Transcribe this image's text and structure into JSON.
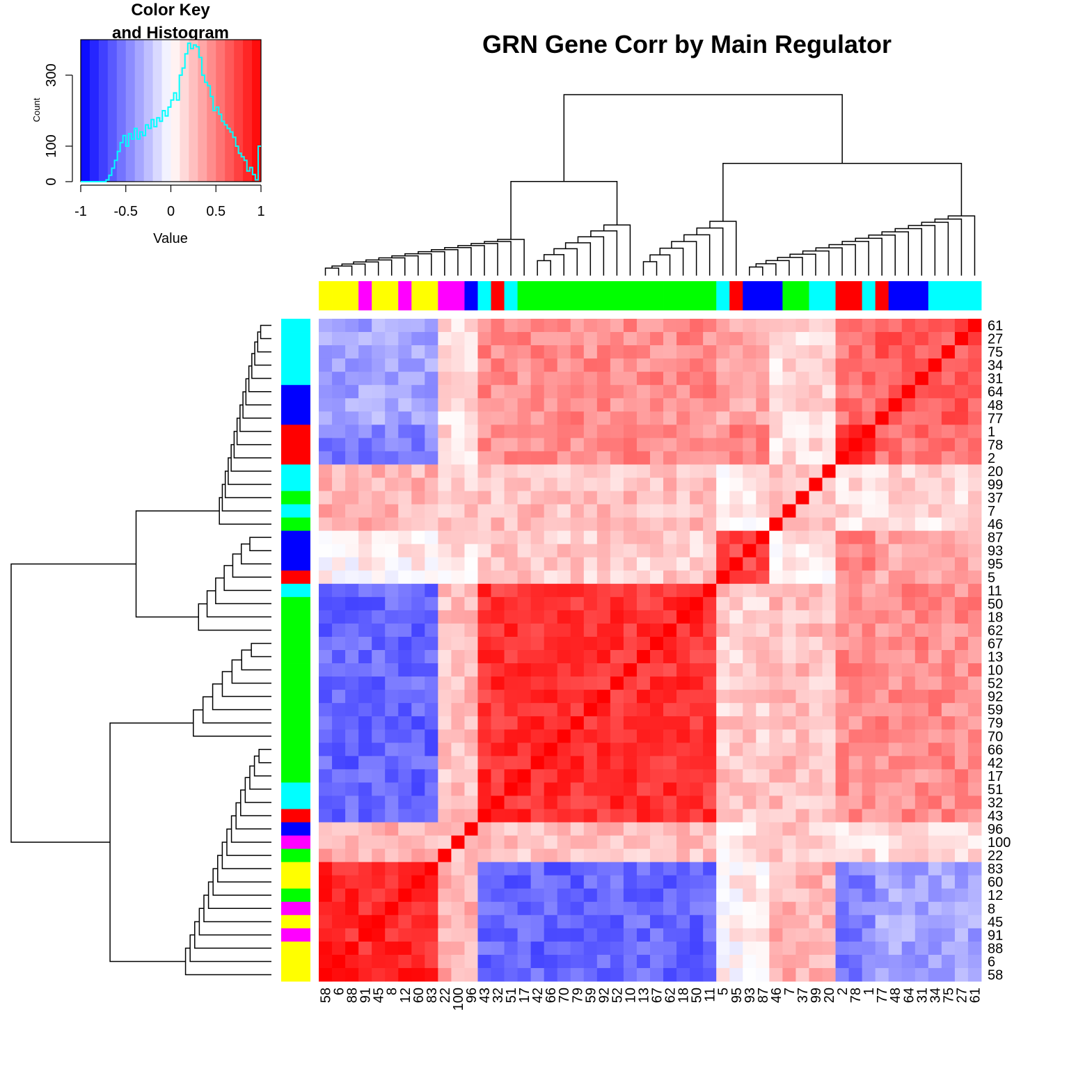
{
  "chart_data": {
    "type": "heatmap",
    "title": "GRN Gene Corr by Main Regulator",
    "color_key": {
      "title_line1": "Color Key",
      "title_line2": "and Histogram",
      "xlabel": "Value",
      "ylabel": "Count",
      "x_ticks": [
        "-1",
        "-0.5",
        "0",
        "0.5",
        "1"
      ],
      "y_ticks": [
        "0",
        "100",
        "300"
      ],
      "xlim": [
        -1,
        1
      ],
      "ylim": [
        0,
        400
      ],
      "color_low": "#0000ff",
      "color_mid": "#ffffff",
      "color_high": "#ff0000",
      "histogram_color": "#00ffff",
      "histogram": [
        0,
        0,
        0,
        0,
        0,
        0,
        0,
        0,
        0,
        5,
        18,
        38,
        60,
        85,
        110,
        130,
        100,
        135,
        120,
        150,
        120,
        140,
        130,
        160,
        150,
        175,
        155,
        180,
        170,
        200,
        185,
        210,
        230,
        250,
        230,
        300,
        320,
        360,
        390,
        375,
        385,
        380,
        350,
        300,
        280,
        270,
        240,
        200,
        210,
        190,
        170,
        160,
        150,
        140,
        125,
        100,
        80,
        70,
        60,
        30,
        40,
        20,
        5,
        100
      ]
    },
    "row_labels": [
      "61",
      "27",
      "75",
      "34",
      "31",
      "64",
      "48",
      "77",
      "1",
      "78",
      "2",
      "20",
      "99",
      "37",
      "7",
      "46",
      "87",
      "93",
      "95",
      "5",
      "11",
      "50",
      "18",
      "62",
      "67",
      "13",
      "10",
      "52",
      "92",
      "59",
      "79",
      "70",
      "66",
      "42",
      "17",
      "51",
      "32",
      "43",
      "96",
      "100",
      "22",
      "83",
      "60",
      "12",
      "8",
      "45",
      "91",
      "88",
      "6",
      "58"
    ],
    "col_labels": [
      "58",
      "6",
      "88",
      "91",
      "45",
      "8",
      "12",
      "60",
      "83",
      "22",
      "100",
      "96",
      "43",
      "32",
      "51",
      "17",
      "42",
      "66",
      "70",
      "79",
      "59",
      "92",
      "52",
      "10",
      "13",
      "67",
      "62",
      "18",
      "50",
      "11",
      "5",
      "95",
      "93",
      "87",
      "46",
      "7",
      "37",
      "99",
      "20",
      "2",
      "78",
      "1",
      "77",
      "48",
      "64",
      "31",
      "34",
      "75",
      "27",
      "61"
    ],
    "regulator_colors": {
      "cyan": "#00ffff",
      "blue": "#0000ff",
      "red": "#ff0000",
      "green": "#00ff00",
      "magenta": "#ff00ff",
      "yellow": "#ffff00"
    },
    "col_side_colors": [
      "yellow",
      "yellow",
      "yellow",
      "magenta",
      "yellow",
      "yellow",
      "magenta",
      "yellow",
      "yellow",
      "magenta",
      "magenta",
      "blue",
      "cyan",
      "red",
      "cyan",
      "green",
      "green",
      "green",
      "green",
      "green",
      "green",
      "green",
      "green",
      "green",
      "green",
      "green",
      "green",
      "green",
      "green",
      "green",
      "cyan",
      "red",
      "blue",
      "blue",
      "blue",
      "green",
      "green",
      "cyan",
      "cyan",
      "red",
      "red",
      "cyan",
      "red",
      "blue",
      "blue",
      "blue",
      "cyan",
      "cyan",
      "cyan",
      "cyan"
    ],
    "row_side_colors": [
      "cyan",
      "cyan",
      "cyan",
      "cyan",
      "cyan",
      "blue",
      "blue",
      "blue",
      "red",
      "red",
      "red",
      "cyan",
      "cyan",
      "green",
      "cyan",
      "green",
      "blue",
      "blue",
      "blue",
      "red",
      "cyan",
      "green",
      "green",
      "green",
      "green",
      "green",
      "green",
      "green",
      "green",
      "green",
      "green",
      "green",
      "green",
      "green",
      "green",
      "cyan",
      "cyan",
      "red",
      "blue",
      "magenta",
      "green",
      "yellow",
      "yellow",
      "green",
      "magenta",
      "yellow",
      "magenta",
      "yellow",
      "yellow",
      "yellow"
    ],
    "groups": {
      "A": [
        "58",
        "6",
        "88",
        "91",
        "45",
        "8",
        "12",
        "60",
        "83"
      ],
      "B": [
        "43",
        "32",
        "51",
        "17",
        "42",
        "66",
        "70",
        "79",
        "59",
        "92",
        "52",
        "10",
        "13",
        "67",
        "62",
        "18",
        "50",
        "11"
      ],
      "C": [
        "5",
        "95",
        "93",
        "87"
      ],
      "D": [
        "2",
        "78",
        "1"
      ],
      "E": [
        "77",
        "48",
        "64",
        "31",
        "34",
        "75",
        "27",
        "61"
      ],
      "O": [
        "22",
        "100",
        "96",
        "46",
        "7",
        "37",
        "99",
        "20"
      ]
    },
    "group_correlations": {
      "A-A": 0.85,
      "B-B": 0.8,
      "C-C": 0.75,
      "D-D": 0.9,
      "E-E": 0.65,
      "O-O": 0.2,
      "A-B": -0.6,
      "A-C": 0.05,
      "A-D": -0.5,
      "A-E": -0.35,
      "A-O": 0.3,
      "B-C": 0.2,
      "B-D": 0.45,
      "B-E": 0.45,
      "B-O": 0.25,
      "C-D": 0.5,
      "C-E": 0.35,
      "C-O": 0.1,
      "D-E": 0.55,
      "D-O": 0.15,
      "E-O": 0.15
    }
  }
}
